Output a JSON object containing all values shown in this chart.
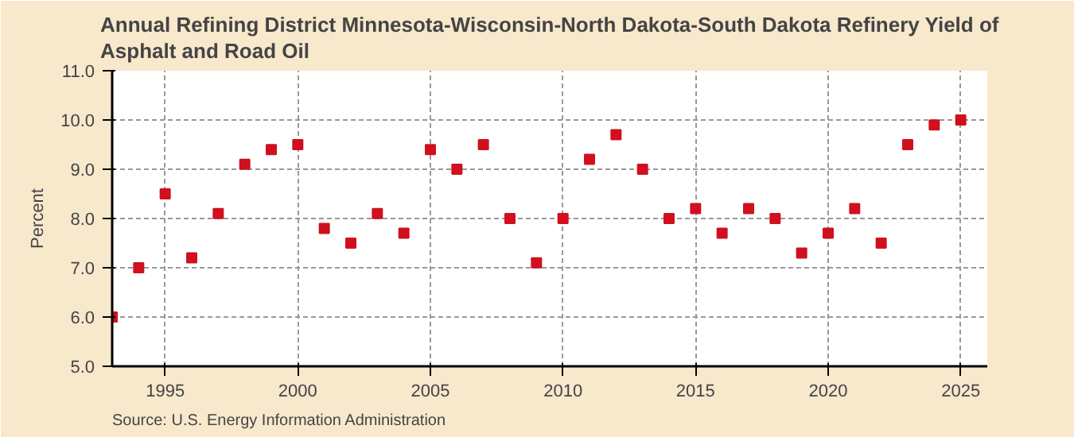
{
  "chart_data": {
    "type": "scatter",
    "title": "Annual Refining District Minnesota-Wisconsin-North Dakota-South Dakota Refinery Yield of Asphalt and Road Oil",
    "ylabel": "Percent",
    "x": [
      1993,
      1994,
      1995,
      1996,
      1997,
      1998,
      1999,
      2000,
      2001,
      2002,
      2003,
      2004,
      2005,
      2006,
      2007,
      2008,
      2009,
      2010,
      2011,
      2012,
      2013,
      2014,
      2015,
      2016,
      2017,
      2018,
      2019,
      2020,
      2021,
      2022,
      2023,
      2024,
      2025
    ],
    "series": [
      {
        "color": "#d0101e",
        "values": [
          6.0,
          7.0,
          8.5,
          7.2,
          8.1,
          9.1,
          9.4,
          9.5,
          7.8,
          7.5,
          8.1,
          7.7,
          9.4,
          9.0,
          9.5,
          8.0,
          7.1,
          8.0,
          9.2,
          9.7,
          9.0,
          8.0,
          8.2,
          7.7,
          8.2,
          8.0,
          7.3,
          7.7,
          8.2,
          7.5,
          9.5,
          9.9,
          10.0
        ]
      }
    ],
    "xlim": [
      1993,
      2026
    ],
    "xticks": [
      1995,
      2000,
      2005,
      2010,
      2015,
      2020,
      2025
    ],
    "ylim": [
      5.0,
      11.0
    ],
    "yticks": [
      {
        "value": 5,
        "label": "5.0"
      },
      {
        "value": 6,
        "label": "6.0"
      },
      {
        "value": 7,
        "label": "7.0"
      },
      {
        "value": 8,
        "label": "8.0"
      },
      {
        "value": 9,
        "label": "9.0"
      },
      {
        "value": 10,
        "label": "10.0"
      },
      {
        "value": 11,
        "label": "11.0"
      }
    ],
    "grid": true,
    "marker": "square",
    "annotations": [
      "Source: U.S. Energy Information Administration"
    ]
  }
}
